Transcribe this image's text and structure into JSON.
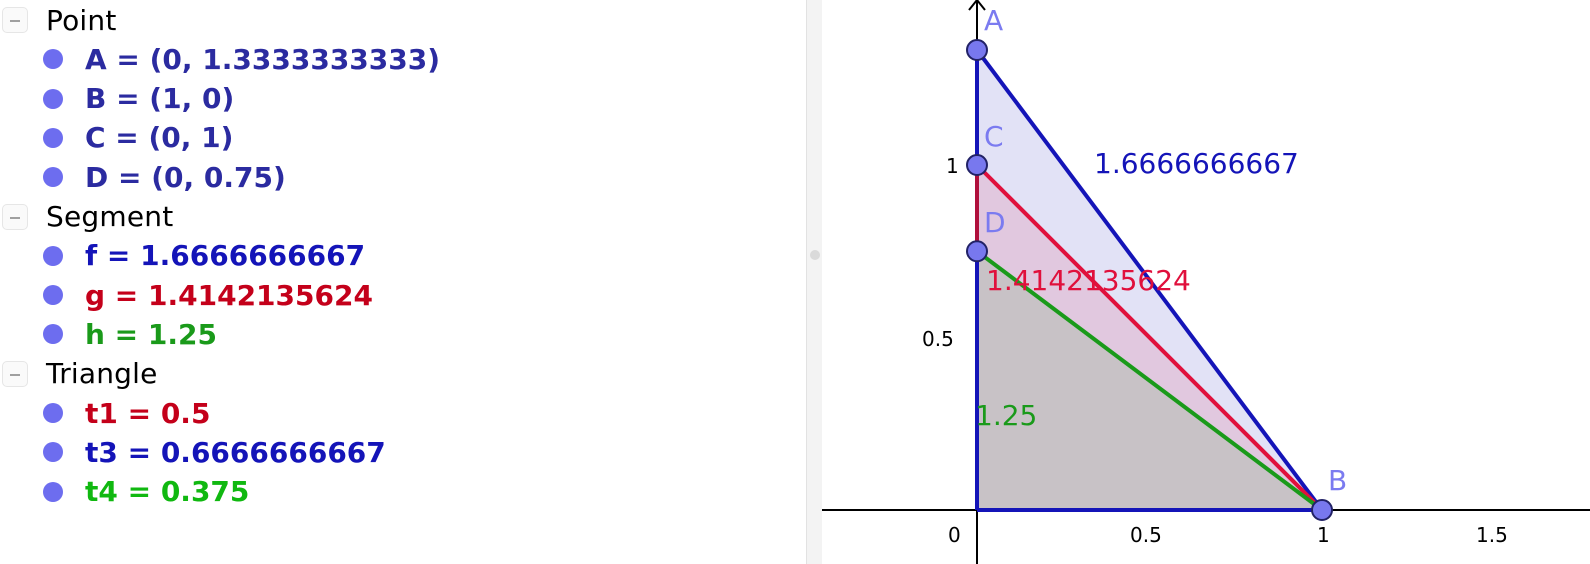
{
  "colors": {
    "blue": "#1414b8",
    "red": "#e0103c",
    "green": "#1a9a1a",
    "brightGreen": "#10b810",
    "pointFill": "#7878ee",
    "pointLabel": "#7b7bf0",
    "darkRed": "#c4001a"
  },
  "algebra": {
    "groups": [
      {
        "title": "Point",
        "items": [
          {
            "text": "A = (0, 1.3333333333)",
            "color": "#2b2ba0"
          },
          {
            "text": "B = (1, 0)",
            "color": "#2b2ba0"
          },
          {
            "text": "C = (0, 1)",
            "color": "#2b2ba0"
          },
          {
            "text": "D = (0, 0.75)",
            "color": "#2b2ba0"
          }
        ]
      },
      {
        "title": "Segment",
        "items": [
          {
            "text": "f = 1.6666666667",
            "color": "#1414b8"
          },
          {
            "text": "g = 1.4142135624",
            "color": "#c4001a"
          },
          {
            "text": "h = 1.25",
            "color": "#1a9a1a"
          }
        ]
      },
      {
        "title": "Triangle",
        "items": [
          {
            "text": "t1 = 0.5",
            "color": "#c4001a"
          },
          {
            "text": "t3 = 0.6666666667",
            "color": "#1414b8"
          },
          {
            "text": "t4 = 0.375",
            "color": "#10b810"
          }
        ]
      }
    ]
  },
  "graphics": {
    "xTicks": [
      "0.5",
      "1",
      "1.5"
    ],
    "yTicks": [
      "0.5",
      "1"
    ],
    "originLabel": "0",
    "points": [
      {
        "name": "A",
        "x": 0,
        "y": 1.3333333333
      },
      {
        "name": "B",
        "x": 1,
        "y": 0
      },
      {
        "name": "C",
        "x": 0,
        "y": 1
      },
      {
        "name": "D",
        "x": 0,
        "y": 0.75
      }
    ],
    "segmentLabels": {
      "f": "1.6666666667",
      "g": "1.4142135624",
      "h": "1.25"
    }
  }
}
